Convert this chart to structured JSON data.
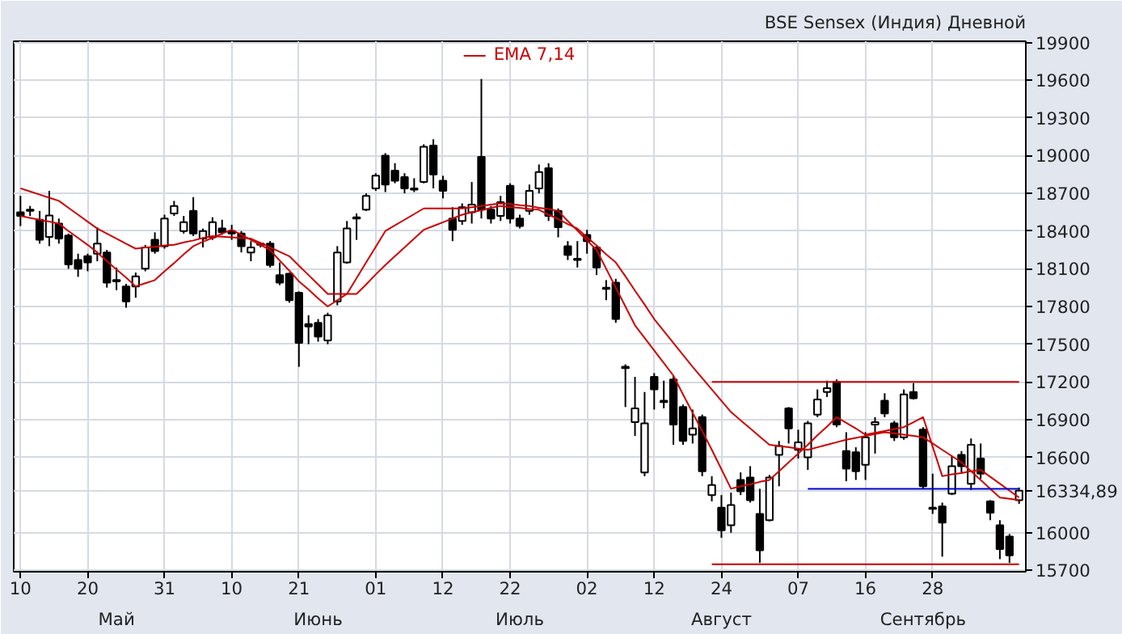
{
  "chart_data": {
    "type": "candlestick",
    "title": "BSE Sensex (Индия) Дневной",
    "categories": [
      "10",
      null,
      null,
      null,
      null,
      null,
      null,
      "20",
      null,
      null,
      null,
      null,
      null,
      null,
      null,
      "31",
      null,
      null,
      null,
      null,
      null,
      null,
      "10",
      null,
      null,
      null,
      null,
      null,
      null,
      "21",
      null,
      null,
      null,
      null,
      null,
      null,
      null,
      "01",
      null,
      null,
      null,
      null,
      null,
      null,
      "12",
      null,
      null,
      null,
      null,
      null,
      null,
      "22",
      null,
      null,
      null,
      null,
      null,
      null,
      null,
      "02",
      null,
      null,
      null,
      null,
      null,
      null,
      "12",
      null,
      null,
      null,
      null,
      null,
      null,
      "24",
      null,
      null,
      null,
      null,
      null,
      null,
      null,
      "07",
      null,
      null,
      null,
      null,
      null,
      null,
      "16",
      null,
      null,
      null,
      null,
      null,
      null,
      "28",
      null,
      null,
      null,
      null,
      null,
      null,
      null,
      null,
      null
    ],
    "ohlc": [
      [
        18550,
        18680,
        18440,
        18520
      ],
      [
        18560,
        18600,
        18520,
        18570
      ],
      [
        18490,
        18560,
        18300,
        18330
      ],
      [
        18353,
        18720,
        18280,
        18524
      ],
      [
        18460,
        18500,
        18300,
        18340
      ],
      [
        18365,
        18380,
        18100,
        18134
      ],
      [
        18170,
        18220,
        18036,
        18100
      ],
      [
        18200,
        18220,
        18080,
        18150
      ],
      [
        18220,
        18430,
        18160,
        18300
      ],
      [
        18230,
        18250,
        17950,
        17990
      ],
      [
        18000,
        18110,
        17930,
        18010
      ],
      [
        17960,
        17980,
        17790,
        17840
      ],
      [
        17960,
        18070,
        17870,
        18040
      ],
      [
        18100,
        18290,
        18080,
        18270
      ],
      [
        18330,
        18390,
        18220,
        18240
      ],
      [
        18280,
        18530,
        18260,
        18500
      ],
      [
        18540,
        18640,
        18520,
        18600
      ],
      [
        18400,
        18520,
        18380,
        18470
      ],
      [
        18560,
        18670,
        18360,
        18380
      ],
      [
        18340,
        18420,
        18270,
        18400
      ],
      [
        18350,
        18510,
        18330,
        18470
      ],
      [
        18420,
        18490,
        18370,
        18390
      ],
      [
        18400,
        18450,
        18330,
        18380
      ],
      [
        18380,
        18400,
        18230,
        18280
      ],
      [
        18230,
        18320,
        18160,
        18270
      ],
      [
        18290,
        18310,
        18270,
        18300
      ],
      [
        18300,
        18320,
        18110,
        18130
      ],
      [
        18050,
        18150,
        17970,
        17990
      ],
      [
        18060,
        18070,
        17830,
        17850
      ],
      [
        17910,
        17920,
        17320,
        17510
      ],
      [
        17660,
        17730,
        17500,
        17640
      ],
      [
        17670,
        17700,
        17520,
        17560
      ],
      [
        17530,
        17750,
        17500,
        17730
      ],
      [
        17840,
        18280,
        17810,
        18230
      ],
      [
        18150,
        18480,
        18140,
        18420
      ],
      [
        18500,
        18540,
        18330,
        18510
      ],
      [
        18570,
        18700,
        18560,
        18680
      ],
      [
        18740,
        18860,
        18720,
        18840
      ],
      [
        19000,
        19020,
        18710,
        18770
      ],
      [
        18880,
        18940,
        18780,
        18800
      ],
      [
        18830,
        18860,
        18700,
        18740
      ],
      [
        18730,
        18820,
        18710,
        18740
      ],
      [
        18790,
        19090,
        18780,
        19070
      ],
      [
        19080,
        19130,
        18740,
        18850
      ],
      [
        18800,
        18840,
        18660,
        18720
      ],
      [
        18500,
        18590,
        18320,
        18410
      ],
      [
        18480,
        18620,
        18450,
        18590
      ],
      [
        18550,
        18790,
        18460,
        18610
      ],
      [
        18990,
        19610,
        18500,
        18570
      ],
      [
        18570,
        18600,
        18460,
        18500
      ],
      [
        18520,
        18680,
        18480,
        18630
      ],
      [
        18760,
        18780,
        18460,
        18500
      ],
      [
        18500,
        18530,
        18420,
        18440
      ],
      [
        18560,
        18770,
        18530,
        18720
      ],
      [
        18740,
        18930,
        18700,
        18870
      ],
      [
        18900,
        18940,
        18480,
        18520
      ],
      [
        18560,
        18580,
        18350,
        18430
      ],
      [
        18280,
        18320,
        18170,
        18210
      ],
      [
        18170,
        18320,
        18110,
        18180
      ],
      [
        18370,
        18410,
        18220,
        18320
      ],
      [
        18270,
        18280,
        18050,
        18110
      ],
      [
        17940,
        18010,
        17850,
        17950
      ],
      [
        17990,
        18020,
        17670,
        17700
      ],
      [
        17310,
        17340,
        17000,
        17320
      ],
      [
        16880,
        17240,
        16770,
        16990
      ],
      [
        16480,
        17120,
        16450,
        16870
      ],
      [
        17240,
        17270,
        16980,
        17140
      ],
      [
        17040,
        17210,
        16990,
        17050
      ],
      [
        17220,
        17250,
        16700,
        16860
      ],
      [
        17000,
        17020,
        16700,
        16730
      ],
      [
        16780,
        16980,
        16710,
        16830
      ],
      [
        16920,
        16940,
        16450,
        16490
      ],
      [
        16300,
        16450,
        16250,
        16380
      ],
      [
        16200,
        16300,
        15960,
        16020
      ],
      [
        16060,
        16320,
        16000,
        16220
      ],
      [
        16420,
        16480,
        16300,
        16330
      ],
      [
        16440,
        16530,
        16240,
        16260
      ],
      [
        16150,
        16350,
        15760,
        15860
      ],
      [
        16100,
        16460,
        16090,
        16440
      ],
      [
        16620,
        16730,
        16370,
        16690
      ],
      [
        16990,
        17000,
        16710,
        16830
      ],
      [
        16660,
        16820,
        16590,
        16720
      ],
      [
        16600,
        16890,
        16500,
        16870
      ],
      [
        16940,
        17140,
        16920,
        17060
      ],
      [
        17120,
        17210,
        17080,
        17150
      ],
      [
        17200,
        17220,
        16840,
        16860
      ],
      [
        16650,
        16800,
        16410,
        16510
      ],
      [
        16640,
        16680,
        16420,
        16490
      ],
      [
        16540,
        16800,
        16420,
        16760
      ],
      [
        16860,
        16920,
        16630,
        16880
      ],
      [
        17050,
        17110,
        16920,
        16950
      ],
      [
        16870,
        16890,
        16730,
        16760
      ],
      [
        16760,
        17140,
        16740,
        17100
      ],
      [
        17120,
        17190,
        17060,
        17070
      ],
      [
        16820,
        16840,
        16350,
        16370
      ],
      [
        16190,
        16470,
        16150,
        16200
      ],
      [
        16210,
        16240,
        15810,
        16080
      ],
      [
        16310,
        16610,
        16300,
        16530
      ],
      [
        16620,
        16650,
        16480,
        16530
      ],
      [
        16390,
        16750,
        16340,
        16700
      ],
      [
        16590,
        16710,
        16430,
        16470
      ],
      [
        16250,
        16260,
        16100,
        16160
      ],
      [
        16060,
        16100,
        15790,
        15870
      ],
      [
        15970,
        15990,
        15760,
        15820
      ],
      [
        16260,
        16360,
        16230,
        16334.89
      ]
    ],
    "series": [
      {
        "name": "EMA 7,14",
        "type": "line",
        "color": "#cc0000",
        "values": [
          18520,
          18505,
          18490,
          18475,
          18460,
          18400,
          18345,
          18290,
          18230,
          18160,
          18095,
          18030,
          17960,
          17985,
          18010,
          18080,
          18145,
          18215,
          18280,
          18315,
          18345,
          18380,
          18410,
          18370,
          18330,
          18290,
          18250,
          18165,
          18085,
          18000,
          17935,
          17865,
          17800,
          17850,
          17900,
          18025,
          18150,
          18275,
          18400,
          18445,
          18490,
          18535,
          18580,
          18580,
          18580,
          18580,
          18580,
          18590,
          18600,
          18610,
          18620,
          18615,
          18605,
          18600,
          18585,
          18575,
          18560,
          18480,
          18405,
          18325,
          18250,
          18100,
          17950,
          17800,
          17650,
          17550,
          17450,
          17350,
          17250,
          17100,
          16955,
          16810,
          16660,
          16505,
          16350,
          16370,
          16385,
          16405,
          16420,
          16490,
          16560,
          16630,
          16700,
          16775,
          16845,
          16920,
          16875,
          16830,
          16780,
          16795,
          16810,
          16825,
          16840,
          16880,
          16920,
          16685,
          16450,
          16465,
          16475,
          16490,
          16500,
          16445,
          16390,
          16335,
          16280
        ]
      },
      {
        "type": "line",
        "color": "#cc0000",
        "values": [
          18740,
          18715,
          18690,
          18665,
          18640,
          18585,
          18530,
          18475,
          18420,
          18380,
          18340,
          18300,
          18260,
          18270,
          18275,
          18285,
          18290,
          18310,
          18325,
          18345,
          18360,
          18355,
          18350,
          18345,
          18340,
          18305,
          18270,
          18235,
          18200,
          18125,
          18050,
          17975,
          17900,
          17900,
          17900,
          17900,
          17975,
          18055,
          18130,
          18200,
          18270,
          18340,
          18410,
          18440,
          18470,
          18500,
          18530,
          18550,
          18565,
          18585,
          18600,
          18590,
          18585,
          18575,
          18570,
          18530,
          18495,
          18455,
          18420,
          18350,
          18285,
          18215,
          18150,
          18040,
          17925,
          17815,
          17700,
          17605,
          17510,
          17415,
          17320,
          17230,
          17140,
          17050,
          16960,
          16895,
          16830,
          16765,
          16700,
          16690,
          16680,
          16670,
          16660,
          16680,
          16700,
          16720,
          16740,
          16755,
          16770,
          16785,
          16800,
          16790,
          16780,
          16770,
          16760,
          16710,
          16660,
          16610,
          16560,
          16490,
          16420,
          16350,
          16280,
          16270,
          16260
        ]
      },
      {
        "type": "line",
        "color": "#cc0000",
        "values": [
          null,
          null,
          null,
          null,
          null,
          null,
          null,
          null,
          null,
          null,
          null,
          null,
          null,
          null,
          null,
          null,
          null,
          null,
          null,
          null,
          null,
          null,
          null,
          null,
          null,
          null,
          null,
          null,
          null,
          null,
          null,
          null,
          null,
          null,
          null,
          null,
          null,
          null,
          null,
          null,
          null,
          null,
          null,
          null,
          null,
          null,
          null,
          null,
          null,
          null,
          null,
          null,
          null,
          null,
          null,
          null,
          null,
          null,
          null,
          null,
          null,
          null,
          null,
          null,
          null,
          null,
          null,
          null,
          null,
          null,
          null,
          null,
          17200,
          17200,
          17200,
          17200,
          17200,
          17200,
          17200,
          17200,
          17200,
          17200,
          17200,
          17200,
          17200,
          17200,
          17200,
          17200,
          17200,
          17200,
          17200,
          17200,
          17200,
          17200,
          17200,
          17200,
          17200,
          17200,
          17200,
          17200,
          17200,
          17200,
          17200,
          17200,
          17200
        ]
      },
      {
        "type": "line",
        "color": "#cc0000",
        "values": [
          null,
          null,
          null,
          null,
          null,
          null,
          null,
          null,
          null,
          null,
          null,
          null,
          null,
          null,
          null,
          null,
          null,
          null,
          null,
          null,
          null,
          null,
          null,
          null,
          null,
          null,
          null,
          null,
          null,
          null,
          null,
          null,
          null,
          null,
          null,
          null,
          null,
          null,
          null,
          null,
          null,
          null,
          null,
          null,
          null,
          null,
          null,
          null,
          null,
          null,
          null,
          null,
          null,
          null,
          null,
          null,
          null,
          null,
          null,
          null,
          null,
          null,
          null,
          null,
          null,
          null,
          null,
          null,
          null,
          null,
          null,
          null,
          15750,
          15750,
          15750,
          15750,
          15750,
          15750,
          15750,
          15750,
          15750,
          15750,
          15750,
          15750,
          15750,
          15750,
          15750,
          15750,
          15750,
          15750,
          15750,
          15750,
          15750,
          15750,
          15750,
          15750,
          15750,
          15750,
          15750,
          15750,
          15750,
          15750,
          15750,
          15750,
          15750
        ]
      },
      {
        "type": "line",
        "color": "#0000cc",
        "values": [
          null,
          null,
          null,
          null,
          null,
          null,
          null,
          null,
          null,
          null,
          null,
          null,
          null,
          null,
          null,
          null,
          null,
          null,
          null,
          null,
          null,
          null,
          null,
          null,
          null,
          null,
          null,
          null,
          null,
          null,
          null,
          null,
          null,
          null,
          null,
          null,
          null,
          null,
          null,
          null,
          null,
          null,
          null,
          null,
          null,
          null,
          null,
          null,
          null,
          null,
          null,
          null,
          null,
          null,
          null,
          null,
          null,
          null,
          null,
          null,
          null,
          null,
          null,
          null,
          null,
          null,
          null,
          null,
          null,
          null,
          null,
          null,
          null,
          null,
          null,
          null,
          null,
          null,
          null,
          null,
          null,
          null,
          16350,
          16350,
          16350,
          16350,
          16350,
          16350,
          16350,
          16350,
          16350,
          16350,
          16350,
          16350,
          16350,
          16350,
          16350,
          16350,
          16350,
          16350,
          16350,
          16350,
          16350,
          16350,
          16350
        ]
      }
    ],
    "ylim": [
      15690,
      19910
    ],
    "yticks": [
      15700,
      16000,
      {
        "value": 16334.89,
        "label": "16334,89"
      },
      16600,
      16900,
      17200,
      17500,
      17800,
      18100,
      18400,
      18700,
      19000,
      19300,
      19600,
      19900
    ],
    "grid": true,
    "legend": "top",
    "annotations": [
      "Май",
      "Июнь",
      "Июль",
      "Август",
      "Сентябрь"
    ]
  }
}
